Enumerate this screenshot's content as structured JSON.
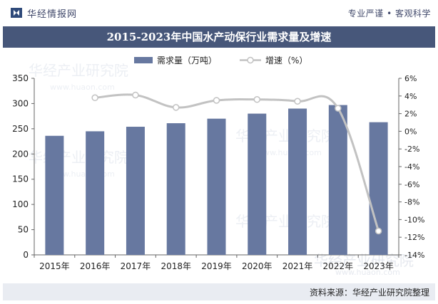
{
  "header": {
    "brand_name": "华经情报网",
    "slogan": "专业严谨 • 客观科学"
  },
  "watermark": {
    "cn": "华经产业研究院",
    "url": "www.huaon.com"
  },
  "footer": {
    "source": "资料来源：华经产业研究院整理"
  },
  "colors": {
    "bar": "#6778a0",
    "line": "#c2c2c2",
    "title_bg": "#47577a"
  },
  "chart_data": {
    "type": "bar",
    "title": "2015-2023年中国水产动保行业需求量及增速",
    "categories": [
      "2015年",
      "2016年",
      "2017年",
      "2018年",
      "2019年",
      "2020年",
      "2021年",
      "2022年",
      "2023年"
    ],
    "series": [
      {
        "name": "需求量（万吨）",
        "type": "bar",
        "axis": "left",
        "values": [
          236,
          245,
          254,
          261,
          270,
          280,
          290,
          297,
          263
        ]
      },
      {
        "name": "增速（%）",
        "type": "line",
        "axis": "right",
        "values": [
          null,
          3.8,
          4.1,
          2.7,
          3.5,
          3.6,
          3.4,
          2.6,
          -11.3
        ]
      }
    ],
    "y_left": {
      "min": 0,
      "max": 350,
      "ticks": [
        0,
        50,
        100,
        150,
        200,
        250,
        300,
        350
      ]
    },
    "y_right": {
      "min": -14,
      "max": 6,
      "ticks": [
        "6%",
        "4%",
        "2%",
        "0%",
        "-2%",
        "-4%",
        "-6%",
        "-8%",
        "-10%",
        "-12%",
        "-14%"
      ]
    },
    "legend_position": "top-center",
    "grid": false
  }
}
